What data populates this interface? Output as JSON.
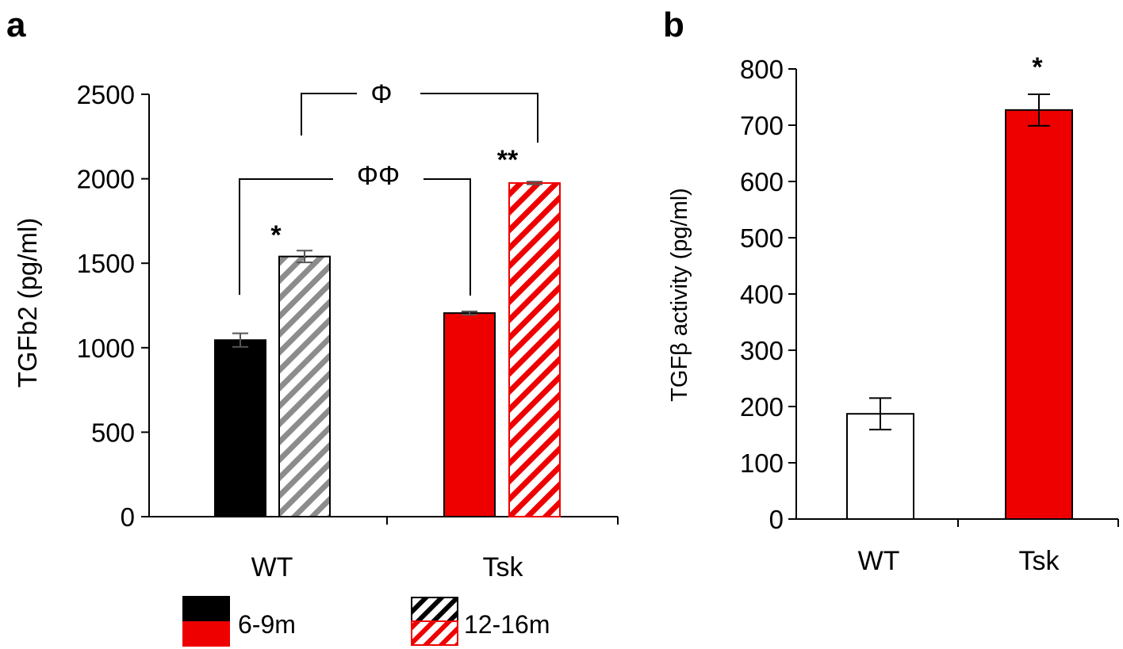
{
  "chart_data": [
    {
      "panel": "a",
      "type": "bar",
      "ylabel": "TGFb2 (pg/ml)",
      "xlabel": "",
      "ylim": [
        0,
        2500
      ],
      "yticks": [
        "0",
        "500",
        "1000",
        "1500",
        "2000",
        "2500"
      ],
      "categories": [
        "WT",
        "Tsk"
      ],
      "bars": [
        {
          "category": "WT",
          "group": "6-9m",
          "value": 1045,
          "error": 40,
          "color": "#000000",
          "hatched": false
        },
        {
          "category": "WT",
          "group": "12-16m",
          "value": 1540,
          "error": 35,
          "color": "#999999",
          "hatched": true
        },
        {
          "category": "Tsk",
          "group": "6-9m",
          "value": 1205,
          "error": 10,
          "color": "#ee0000",
          "hatched": false
        },
        {
          "category": "Tsk",
          "group": "12-16m",
          "value": 1975,
          "error": 8,
          "color": "#ee0000",
          "hatched": true
        }
      ],
      "annotations": {
        "wt_star": "*",
        "tsk_star": "**",
        "bracket_top": "Φ",
        "bracket_mid": "ΦΦ"
      },
      "legend": [
        {
          "label": "6-9m",
          "colors": [
            "#000000",
            "#ee0000"
          ],
          "hatched": false
        },
        {
          "label": "12-16m",
          "colors": [
            "#000000",
            "#ee0000"
          ],
          "hatched": true
        }
      ],
      "legend_position": "bottom"
    },
    {
      "panel": "b",
      "type": "bar",
      "ylabel": "TGFβ activity (pg/ml)",
      "xlabel": "",
      "ylim": [
        0,
        800
      ],
      "yticks": [
        "0",
        "100",
        "200",
        "300",
        "400",
        "500",
        "600",
        "700",
        "800"
      ],
      "categories": [
        "WT",
        "Tsk"
      ],
      "bars": [
        {
          "category": "WT",
          "value": 187,
          "error": 28,
          "color": "#ffffff"
        },
        {
          "category": "Tsk",
          "value": 727,
          "error": 28,
          "color": "#ee0000"
        }
      ],
      "annotations": {
        "tsk_star": "*"
      }
    }
  ]
}
